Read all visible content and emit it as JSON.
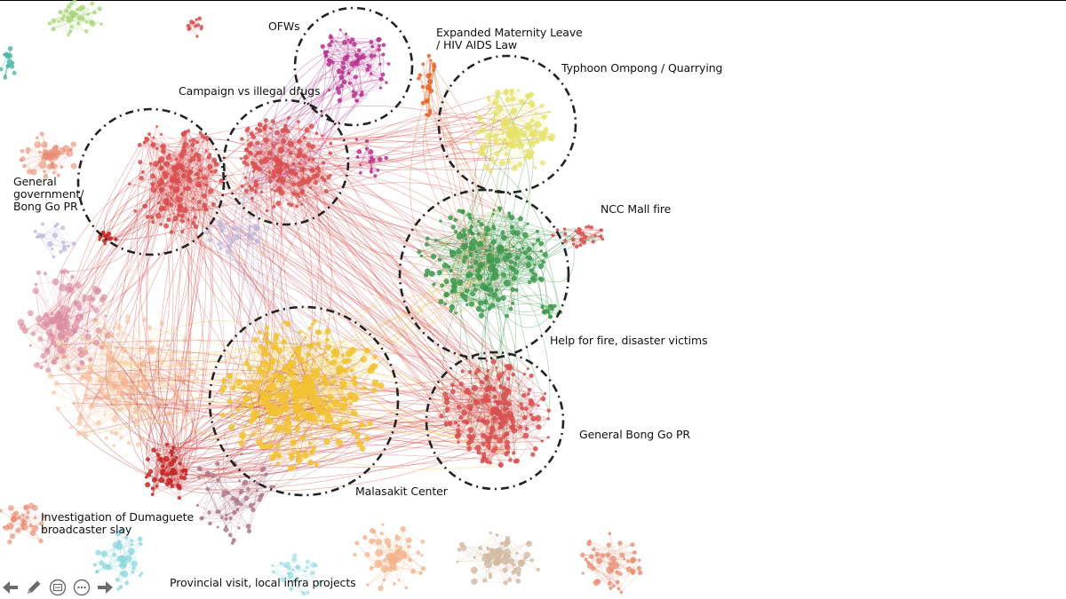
{
  "cluster_labels": [
    "OFWs",
    "Expanded Maternity Leave\n/ HIV AIDS Law",
    "Typhoon Ompong / Quarrying",
    "Campaign vs illegal drugs",
    "General\ngovernment/\nBong Go PR",
    "NCC Mall fire",
    "Help for fire, disaster victims",
    "General Bong Go PR",
    "Malasakit Center",
    "Investigation of Dumaguete\nbroadcaster slay",
    "Provincial visit, local infra projects"
  ],
  "toolbar": {
    "prev": "arrow-left-icon",
    "pen": "pen-icon",
    "slides": "slides-icon",
    "more": "more-icon",
    "next": "arrow-right-icon"
  },
  "colors": {
    "red": "#d94f4f",
    "dark_red": "#c62828",
    "green": "#3e9a4e",
    "yellow": "#f2c230",
    "pale_yellow": "#e6e36a",
    "magenta": "#b8338f",
    "orange": "#e8642a",
    "pink": "#d98aa0",
    "peach": "#f2b38a",
    "mauve": "#b07a8a",
    "cyan": "#8ed8df",
    "teal": "#4bb5a5",
    "lavender": "#b9b1d8",
    "light_green": "#a9d67a",
    "tan": "#d2b8a0",
    "salmon": "#e88c70"
  }
}
